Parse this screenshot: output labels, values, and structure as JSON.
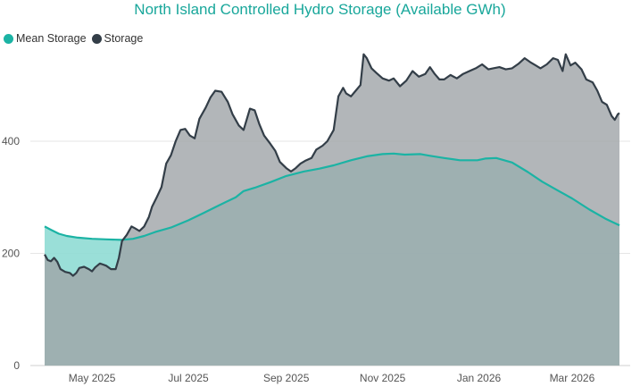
{
  "chart_data": {
    "type": "area",
    "title": "North Island Controlled Hydro Storage (Available GWh)",
    "xlabel": "",
    "ylabel": "",
    "ylim": [
      0,
      580
    ],
    "yticks": [
      0,
      200,
      400
    ],
    "xlim": [
      "2025-04-01",
      "2026-03-31"
    ],
    "xticks": [
      {
        "date": "2025-05-01",
        "label": "May 2025"
      },
      {
        "date": "2025-07-01",
        "label": "Jul 2025"
      },
      {
        "date": "2025-09-01",
        "label": "Sep 2025"
      },
      {
        "date": "2025-11-01",
        "label": "Nov 2025"
      },
      {
        "date": "2026-01-01",
        "label": "Jan 2026"
      },
      {
        "date": "2026-03-01",
        "label": "Mar 2026"
      }
    ],
    "grid": true,
    "legend_position": "top-left",
    "series": [
      {
        "name": "Mean Storage",
        "color": "#1bb3a4",
        "fill": "#8fdcd4",
        "points": [
          [
            "2025-04-01",
            248
          ],
          [
            "2025-04-05",
            242
          ],
          [
            "2025-04-10",
            235
          ],
          [
            "2025-04-15",
            231
          ],
          [
            "2025-04-22",
            228
          ],
          [
            "2025-05-01",
            226
          ],
          [
            "2025-05-10",
            225
          ],
          [
            "2025-05-20",
            224
          ],
          [
            "2025-05-27",
            226
          ],
          [
            "2025-06-03",
            231
          ],
          [
            "2025-06-10",
            238
          ],
          [
            "2025-06-20",
            246
          ],
          [
            "2025-07-01",
            259
          ],
          [
            "2025-07-10",
            271
          ],
          [
            "2025-07-20",
            285
          ],
          [
            "2025-07-31",
            300
          ],
          [
            "2025-08-05",
            311
          ],
          [
            "2025-08-12",
            317
          ],
          [
            "2025-08-22",
            327
          ],
          [
            "2025-09-01",
            338
          ],
          [
            "2025-09-12",
            346
          ],
          [
            "2025-09-22",
            351
          ],
          [
            "2025-10-01",
            357
          ],
          [
            "2025-10-12",
            366
          ],
          [
            "2025-10-22",
            373
          ],
          [
            "2025-11-01",
            377
          ],
          [
            "2025-11-08",
            378
          ],
          [
            "2025-11-15",
            376
          ],
          [
            "2025-11-25",
            377
          ],
          [
            "2025-12-01",
            374
          ],
          [
            "2025-12-10",
            370
          ],
          [
            "2025-12-20",
            366
          ],
          [
            "2025-12-31",
            366
          ],
          [
            "2026-01-05",
            369
          ],
          [
            "2026-01-12",
            370
          ],
          [
            "2026-01-22",
            362
          ],
          [
            "2026-02-01",
            345
          ],
          [
            "2026-02-10",
            328
          ],
          [
            "2026-02-20",
            312
          ],
          [
            "2026-03-01",
            298
          ],
          [
            "2026-03-12",
            278
          ],
          [
            "2026-03-22",
            262
          ],
          [
            "2026-03-31",
            250
          ]
        ]
      },
      {
        "name": "Storage",
        "color": "#333e48",
        "fill": "#9fa4a7",
        "points": [
          [
            "2025-04-01",
            198
          ],
          [
            "2025-04-03",
            188
          ],
          [
            "2025-04-05",
            186
          ],
          [
            "2025-04-07",
            192
          ],
          [
            "2025-04-09",
            185
          ],
          [
            "2025-04-11",
            172
          ],
          [
            "2025-04-14",
            167
          ],
          [
            "2025-04-17",
            165
          ],
          [
            "2025-04-19",
            160
          ],
          [
            "2025-04-21",
            165
          ],
          [
            "2025-04-23",
            174
          ],
          [
            "2025-04-26",
            176
          ],
          [
            "2025-04-29",
            172
          ],
          [
            "2025-05-01",
            168
          ],
          [
            "2025-05-03",
            175
          ],
          [
            "2025-05-06",
            182
          ],
          [
            "2025-05-08",
            180
          ],
          [
            "2025-05-10",
            178
          ],
          [
            "2025-05-13",
            172
          ],
          [
            "2025-05-16",
            172
          ],
          [
            "2025-05-18",
            192
          ],
          [
            "2025-05-20",
            222
          ],
          [
            "2025-05-23",
            233
          ],
          [
            "2025-05-26",
            248
          ],
          [
            "2025-05-28",
            245
          ],
          [
            "2025-05-31",
            240
          ],
          [
            "2025-06-03",
            248
          ],
          [
            "2025-06-06",
            265
          ],
          [
            "2025-06-08",
            283
          ],
          [
            "2025-06-11",
            300
          ],
          [
            "2025-06-14",
            318
          ],
          [
            "2025-06-17",
            360
          ],
          [
            "2025-06-20",
            375
          ],
          [
            "2025-06-23",
            400
          ],
          [
            "2025-06-26",
            420
          ],
          [
            "2025-06-29",
            422
          ],
          [
            "2025-07-02",
            410
          ],
          [
            "2025-07-05",
            405
          ],
          [
            "2025-07-08",
            440
          ],
          [
            "2025-07-12",
            460
          ],
          [
            "2025-07-15",
            478
          ],
          [
            "2025-07-18",
            490
          ],
          [
            "2025-07-22",
            488
          ],
          [
            "2025-07-26",
            470
          ],
          [
            "2025-07-29",
            448
          ],
          [
            "2025-08-02",
            428
          ],
          [
            "2025-08-05",
            420
          ],
          [
            "2025-08-09",
            458
          ],
          [
            "2025-08-12",
            455
          ],
          [
            "2025-08-15",
            430
          ],
          [
            "2025-08-18",
            410
          ],
          [
            "2025-08-22",
            395
          ],
          [
            "2025-08-25",
            383
          ],
          [
            "2025-08-28",
            363
          ],
          [
            "2025-09-01",
            352
          ],
          [
            "2025-09-04",
            346
          ],
          [
            "2025-09-07",
            352
          ],
          [
            "2025-09-10",
            360
          ],
          [
            "2025-09-13",
            365
          ],
          [
            "2025-09-17",
            370
          ],
          [
            "2025-09-20",
            385
          ],
          [
            "2025-09-24",
            392
          ],
          [
            "2025-09-27",
            400
          ],
          [
            "2025-10-01",
            420
          ],
          [
            "2025-10-04",
            480
          ],
          [
            "2025-10-07",
            495
          ],
          [
            "2025-10-09",
            485
          ],
          [
            "2025-10-12",
            480
          ],
          [
            "2025-10-15",
            490
          ],
          [
            "2025-10-18",
            500
          ],
          [
            "2025-10-20",
            555
          ],
          [
            "2025-10-22",
            548
          ],
          [
            "2025-10-25",
            530
          ],
          [
            "2025-10-28",
            522
          ],
          [
            "2025-11-01",
            512
          ],
          [
            "2025-11-05",
            508
          ],
          [
            "2025-11-08",
            512
          ],
          [
            "2025-11-12",
            498
          ],
          [
            "2025-11-16",
            508
          ],
          [
            "2025-11-20",
            525
          ],
          [
            "2025-11-24",
            515
          ],
          [
            "2025-11-28",
            520
          ],
          [
            "2025-12-01",
            532
          ],
          [
            "2025-12-04",
            520
          ],
          [
            "2025-12-07",
            510
          ],
          [
            "2025-12-10",
            510
          ],
          [
            "2025-12-14",
            518
          ],
          [
            "2025-12-18",
            512
          ],
          [
            "2025-12-22",
            520
          ],
          [
            "2025-12-26",
            525
          ],
          [
            "2025-12-30",
            530
          ],
          [
            "2026-01-03",
            537
          ],
          [
            "2026-01-07",
            528
          ],
          [
            "2026-01-10",
            530
          ],
          [
            "2026-01-14",
            532
          ],
          [
            "2026-01-18",
            528
          ],
          [
            "2026-01-22",
            530
          ],
          [
            "2026-01-26",
            538
          ],
          [
            "2026-01-30",
            548
          ],
          [
            "2026-02-03",
            540
          ],
          [
            "2026-02-06",
            535
          ],
          [
            "2026-02-09",
            530
          ],
          [
            "2026-02-13",
            537
          ],
          [
            "2026-02-17",
            548
          ],
          [
            "2026-02-20",
            545
          ],
          [
            "2026-02-23",
            525
          ],
          [
            "2026-02-25",
            555
          ],
          [
            "2026-02-28",
            535
          ],
          [
            "2026-03-03",
            540
          ],
          [
            "2026-03-07",
            528
          ],
          [
            "2026-03-10",
            510
          ],
          [
            "2026-03-14",
            505
          ],
          [
            "2026-03-17",
            490
          ],
          [
            "2026-03-20",
            470
          ],
          [
            "2026-03-23",
            465
          ],
          [
            "2026-03-26",
            445
          ],
          [
            "2026-03-28",
            438
          ],
          [
            "2026-03-30",
            448
          ],
          [
            "2026-03-31",
            450
          ]
        ]
      }
    ]
  },
  "legend": {
    "items": [
      {
        "label": "Mean Storage",
        "color": "#1bb3a4"
      },
      {
        "label": "Storage",
        "color": "#333e48"
      }
    ]
  }
}
